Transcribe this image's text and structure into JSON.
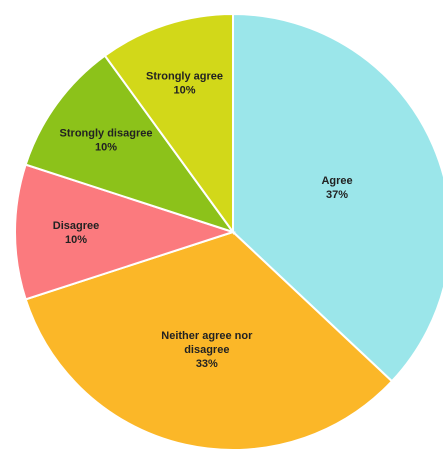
{
  "chart_data": {
    "type": "pie",
    "title": "",
    "start_angle_deg": 0,
    "direction": "clockwise",
    "slices": [
      {
        "label_lines": [
          "Agree"
        ],
        "percent_label": "37%",
        "value": 37,
        "color": "#9be6ea"
      },
      {
        "label_lines": [
          "Neither agree nor",
          "disagree"
        ],
        "percent_label": "33%",
        "value": 33,
        "color": "#fbb728"
      },
      {
        "label_lines": [
          "Disagree"
        ],
        "percent_label": "10%",
        "value": 10,
        "color": "#fb7a7e"
      },
      {
        "label_lines": [
          "Strongly disagree"
        ],
        "percent_label": "10%",
        "value": 10,
        "color": "#8cc21a"
      },
      {
        "label_lines": [
          "Strongly agree"
        ],
        "percent_label": "10%",
        "value": 10,
        "color": "#d2d819"
      }
    ]
  }
}
